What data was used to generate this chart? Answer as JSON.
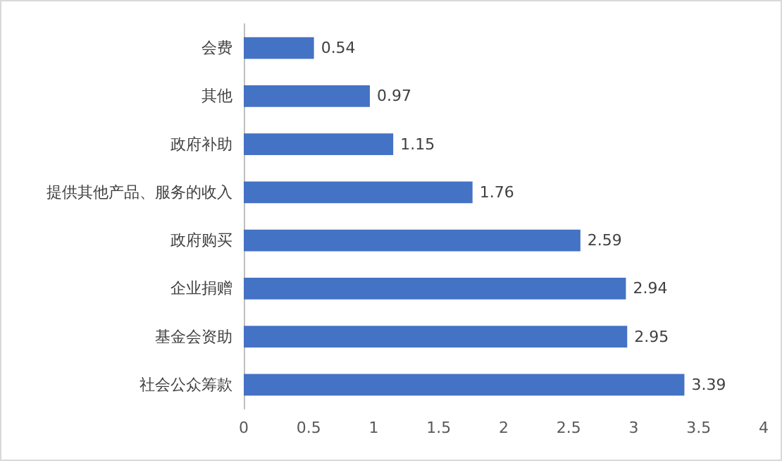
{
  "chart_data": {
    "type": "bar",
    "orientation": "horizontal",
    "categories": [
      "会费",
      "其他",
      "政府补助",
      "提供其他产品、服务的收入",
      "政府购买",
      "企业捐赠",
      "基金会资助",
      "社会公众筹款"
    ],
    "values": [
      0.54,
      0.97,
      1.15,
      1.76,
      2.59,
      2.94,
      2.95,
      3.39
    ],
    "color": "#4472c4",
    "xlim": [
      0,
      4
    ],
    "xticks": [
      0,
      0.5,
      1,
      1.5,
      2,
      2.5,
      3,
      3.5,
      4
    ],
    "data_labels": true
  }
}
